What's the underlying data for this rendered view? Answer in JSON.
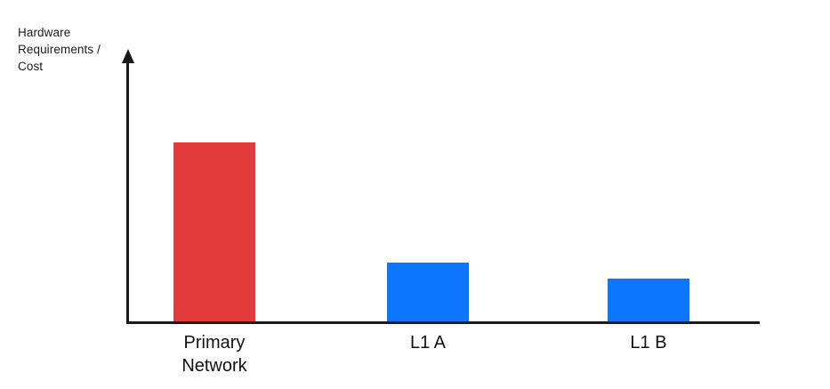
{
  "chart_data": {
    "type": "bar",
    "title": "",
    "xlabel": "",
    "ylabel": "Hardware Requirements / Cost",
    "ylabel_lines": [
      "Hardware",
      "Requirements /",
      "Cost"
    ],
    "categories": [
      "Primary Network",
      "L1 A",
      "L1 B"
    ],
    "values": [
      100,
      33,
      24
    ],
    "values_note": "relative bar heights; chart shows no numeric ticks or gridlines",
    "series": [
      {
        "name": "Hardware Requirements / Cost",
        "values": [
          100,
          33,
          24
        ]
      }
    ],
    "bar_colors": [
      "#e33b3b",
      "#0d76fc",
      "#0d76fc"
    ],
    "axis_color": "#1a1a1a",
    "background_color": "#ffffff",
    "legend_position": "none",
    "grid": false,
    "ylim_note": "unlabeled qualitative axis with upward arrow"
  }
}
